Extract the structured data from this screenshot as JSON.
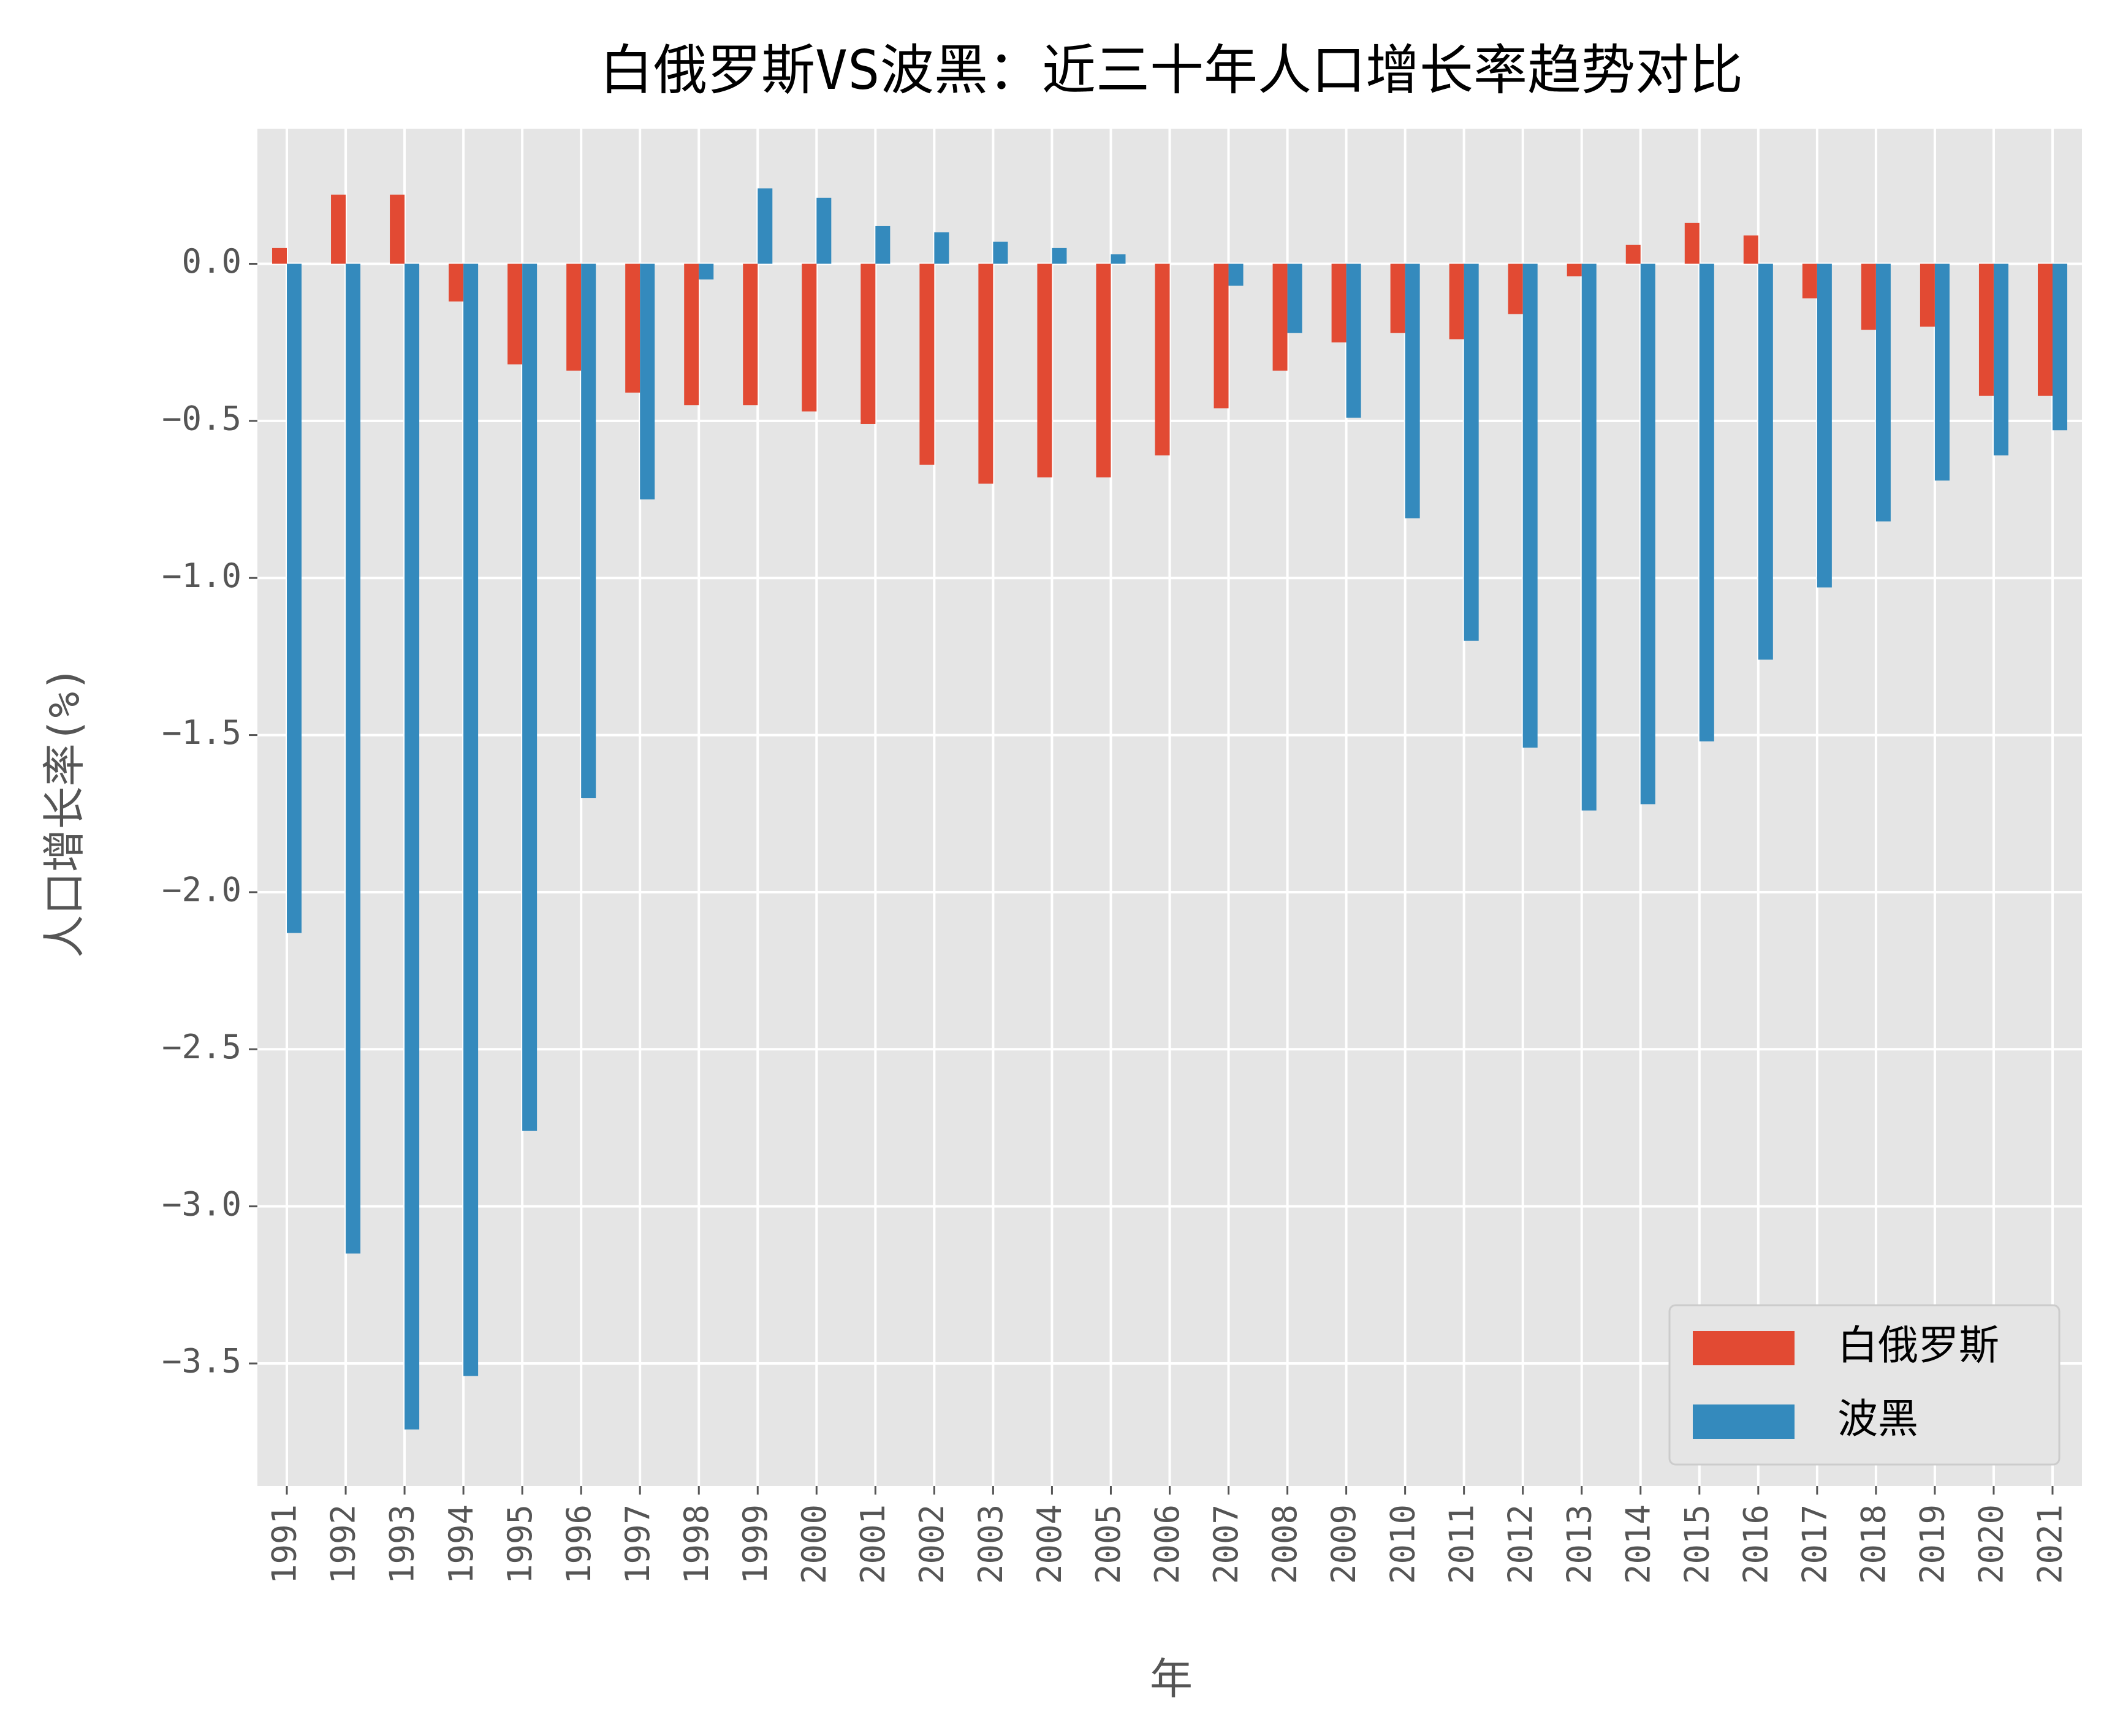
{
  "chart_data": {
    "type": "bar",
    "title": "白俄罗斯VS波黑：近三十年人口增长率趋势对比",
    "xlabel": "年",
    "ylabel": "人口增长率(%)",
    "categories": [
      "1991",
      "1992",
      "1993",
      "1994",
      "1995",
      "1996",
      "1997",
      "1998",
      "1999",
      "2000",
      "2001",
      "2002",
      "2003",
      "2004",
      "2005",
      "2006",
      "2007",
      "2008",
      "2009",
      "2010",
      "2011",
      "2012",
      "2013",
      "2014",
      "2015",
      "2016",
      "2017",
      "2018",
      "2019",
      "2020",
      "2021"
    ],
    "series": [
      {
        "name": "白俄罗斯",
        "color": "#e24a33",
        "values": [
          0.05,
          0.22,
          0.22,
          -0.12,
          -0.32,
          -0.34,
          -0.41,
          -0.45,
          -0.45,
          -0.47,
          -0.51,
          -0.64,
          -0.7,
          -0.68,
          -0.68,
          -0.61,
          -0.46,
          -0.34,
          -0.25,
          -0.22,
          -0.24,
          -0.16,
          -0.04,
          0.06,
          0.13,
          0.09,
          -0.11,
          -0.21,
          -0.2,
          -0.42,
          -0.42
        ]
      },
      {
        "name": "波黑",
        "color": "#348abd",
        "values": [
          -2.13,
          -3.15,
          -3.71,
          -3.54,
          -2.76,
          -1.7,
          -0.75,
          -0.05,
          0.24,
          0.21,
          0.12,
          0.1,
          0.07,
          0.05,
          0.03,
          0.0,
          -0.07,
          -0.22,
          -0.49,
          -0.81,
          -1.2,
          -1.54,
          -1.74,
          -1.72,
          -1.52,
          -1.26,
          -1.03,
          -0.82,
          -0.69,
          -0.61,
          -0.53
        ]
      }
    ],
    "ylim": [
      -3.89,
      0.43
    ],
    "yticks": [
      {
        "value": 0,
        "label": "0.0"
      },
      {
        "value": -0.5,
        "label": "−0.5"
      },
      {
        "value": -1,
        "label": "−1.0"
      },
      {
        "value": -1.5,
        "label": "−1.5"
      },
      {
        "value": -2,
        "label": "−2.0"
      },
      {
        "value": -2.5,
        "label": "−2.5"
      },
      {
        "value": -3,
        "label": "−3.0"
      },
      {
        "value": -3.5,
        "label": "−3.5"
      }
    ],
    "grid": true,
    "legend": "lower right"
  }
}
